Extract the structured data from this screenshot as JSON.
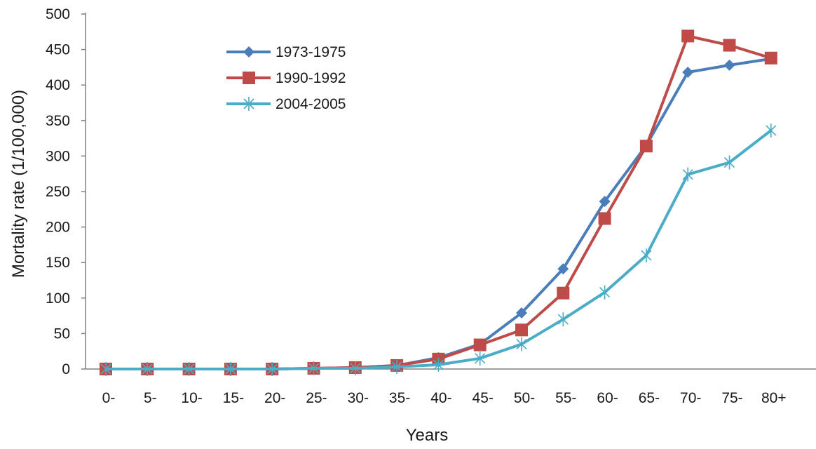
{
  "chart_data": {
    "type": "line",
    "title": "",
    "xlabel": "Years",
    "ylabel": "Mortality rate (1/100,000)",
    "ylim": [
      0,
      500
    ],
    "yticks": [
      0,
      50,
      100,
      150,
      200,
      250,
      300,
      350,
      400,
      450,
      500
    ],
    "categories": [
      "0-",
      "5-",
      "10-",
      "15-",
      "20-",
      "25-",
      "30-",
      "35-",
      "40-",
      "45-",
      "50-",
      "55-",
      "60-",
      "65-",
      "70-",
      "75-",
      "80+"
    ],
    "grid": false,
    "legend_position": "top-left",
    "series": [
      {
        "name": "1973-1975",
        "color": "#4a7ebb",
        "marker": "diamond",
        "values": [
          0,
          0,
          0,
          0,
          0,
          1,
          2,
          5,
          16,
          35,
          79,
          141,
          236,
          315,
          418,
          428,
          437
        ]
      },
      {
        "name": "1990-1992",
        "color": "#be4b48",
        "marker": "square",
        "values": [
          0,
          0,
          0,
          0,
          0,
          1,
          2,
          5,
          14,
          34,
          55,
          107,
          212,
          314,
          469,
          456,
          438
        ]
      },
      {
        "name": "2004-2005",
        "color": "#4bacc6",
        "marker": "asterisk",
        "values": [
          0,
          0,
          0,
          0,
          0,
          1,
          1,
          3,
          6,
          15,
          35,
          70,
          108,
          160,
          274,
          291,
          336
        ]
      }
    ]
  }
}
